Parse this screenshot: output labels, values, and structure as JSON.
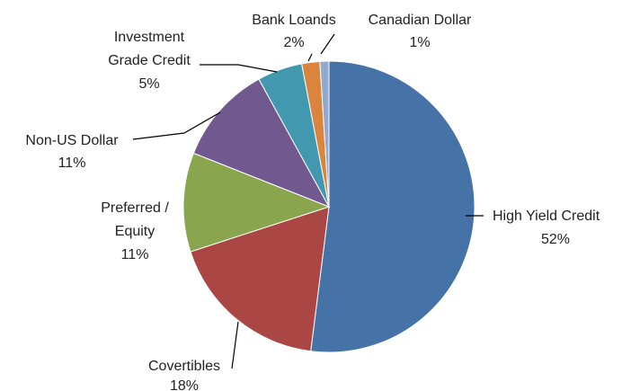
{
  "chart_data": {
    "type": "pie",
    "title": "",
    "slices": [
      {
        "name": "High Yield Credit",
        "value": 52,
        "label": "52%",
        "color": "#4572a7"
      },
      {
        "name": "Covertibles",
        "value": 18,
        "label": "18%",
        "color": "#aa4643"
      },
      {
        "name": "Preferred / Equity",
        "value": 11,
        "label": "11%",
        "color": "#89a54e"
      },
      {
        "name": "Non-US Dollar",
        "value": 11,
        "label": "11%",
        "color": "#71588f"
      },
      {
        "name": "Investment Grade Credit",
        "value": 5,
        "label": "5%",
        "color": "#4198af"
      },
      {
        "name": "Bank Loands",
        "value": 2,
        "label": "2%",
        "color": "#db843d"
      },
      {
        "name": "Canadian Dollar",
        "value": 1,
        "label": "1%",
        "color": "#93a9cf"
      }
    ],
    "start_angle": "12 o'clock",
    "direction": "clockwise",
    "legend": "none"
  },
  "labels": {
    "high_yield_name": "High Yield Credit",
    "high_yield_pct": "52%",
    "covertibles_name": "Covertibles",
    "covertibles_pct": "18%",
    "preferred_line1": "Preferred /",
    "preferred_line2": "Equity",
    "preferred_pct": "11%",
    "nonus_name": "Non-US Dollar",
    "nonus_pct": "11%",
    "investment_line1": "Investment",
    "investment_line2": "Grade Credit",
    "investment_pct": "5%",
    "bank_name": "Bank Loands",
    "bank_pct": "2%",
    "canadian_name": "Canadian Dollar",
    "canadian_pct": "1%"
  }
}
